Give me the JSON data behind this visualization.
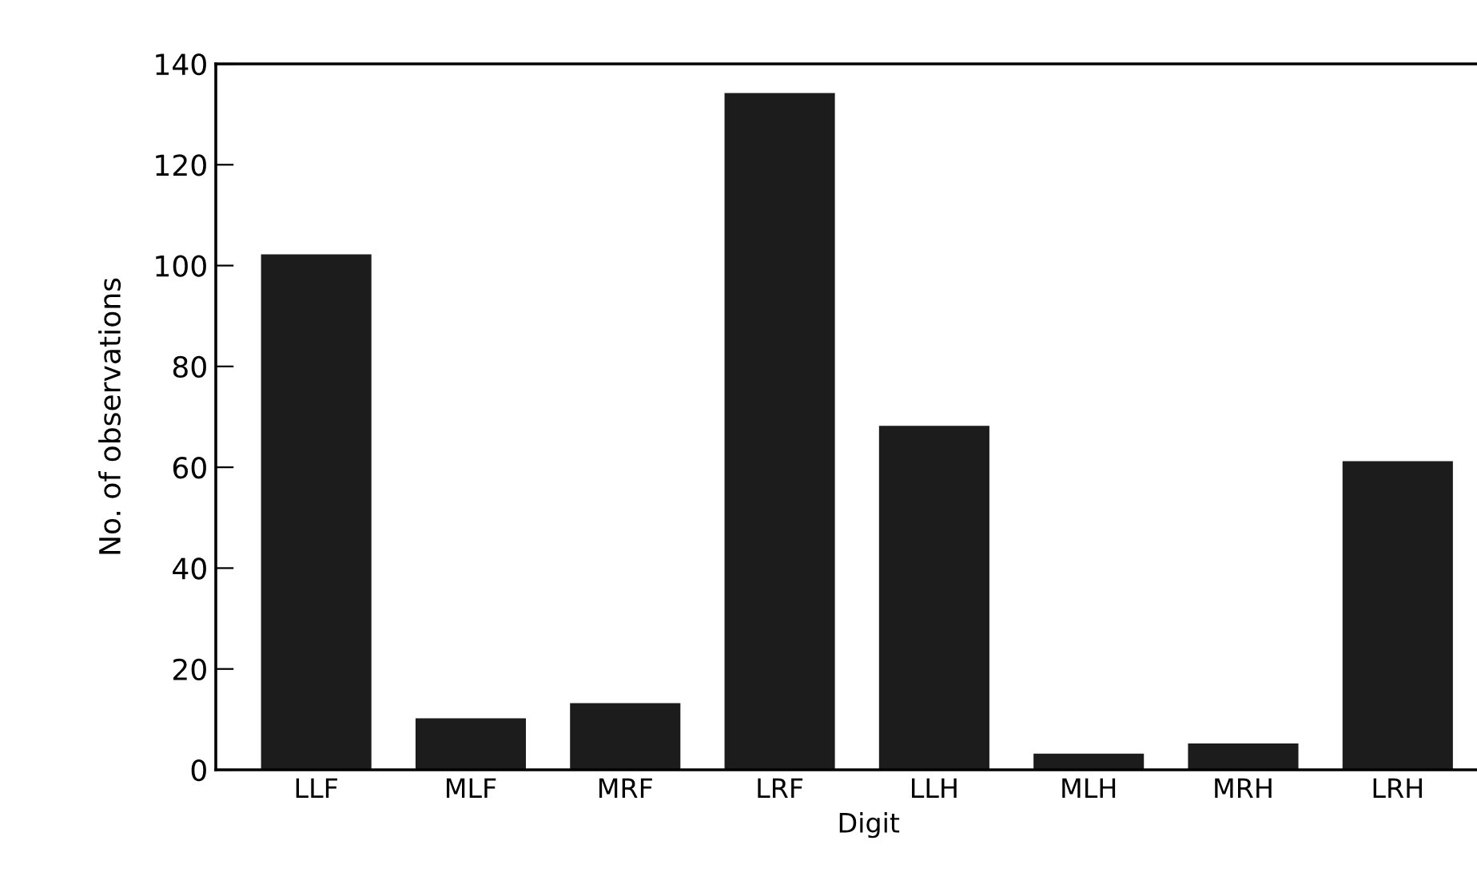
{
  "chart_data": {
    "type": "bar",
    "xlabel": "Digit",
    "ylabel": "No. of observations",
    "categories": [
      "LLF",
      "MLF",
      "MRF",
      "LRF",
      "LLH",
      "MLH",
      "MRH",
      "LRH"
    ],
    "values": [
      102,
      10,
      13,
      134,
      68,
      3,
      5,
      61
    ],
    "color": "#1c1c1c",
    "ylim": [
      0,
      140
    ],
    "yticks": [
      0,
      20,
      40,
      60,
      80,
      100,
      120,
      140
    ],
    "grid": false
  }
}
